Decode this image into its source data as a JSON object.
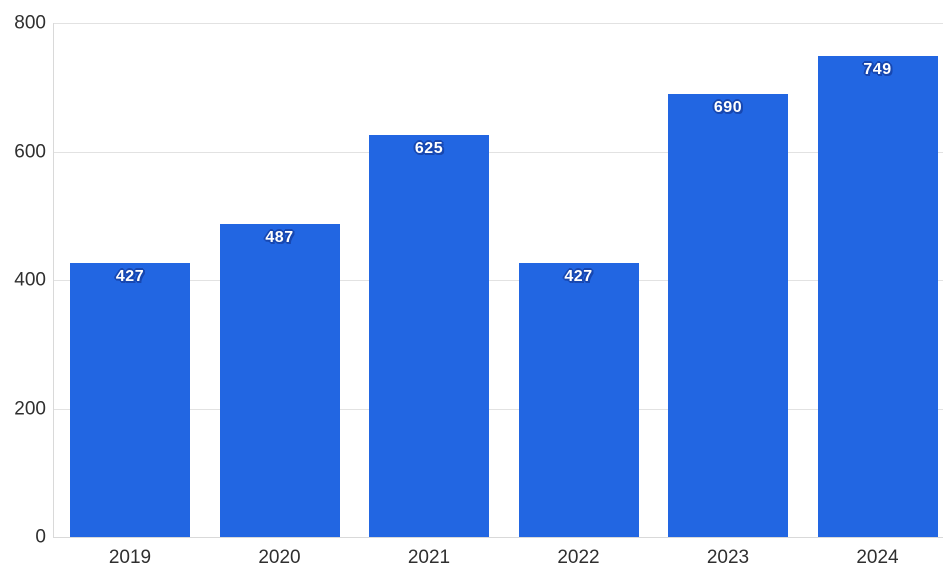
{
  "chart_data": {
    "type": "bar",
    "title": "",
    "xlabel": "",
    "ylabel": "",
    "categories": [
      "2019",
      "2020",
      "2021",
      "2022",
      "2023",
      "2024"
    ],
    "values": [
      427,
      487,
      625,
      427,
      690,
      749
    ],
    "yticks": [
      0,
      200,
      400,
      600,
      800
    ],
    "ylim": [
      0,
      800
    ],
    "grid": "horizontal",
    "legend": "none",
    "colors": {
      "bar": "#2266E2",
      "bar_label_text": "#ffffff",
      "bar_label_outline": "#1747B0",
      "gridline": "#e2e2e2",
      "axis_line": "#d9d9d9",
      "axis_text": "#2f2f2f",
      "background": "#ffffff"
    }
  }
}
